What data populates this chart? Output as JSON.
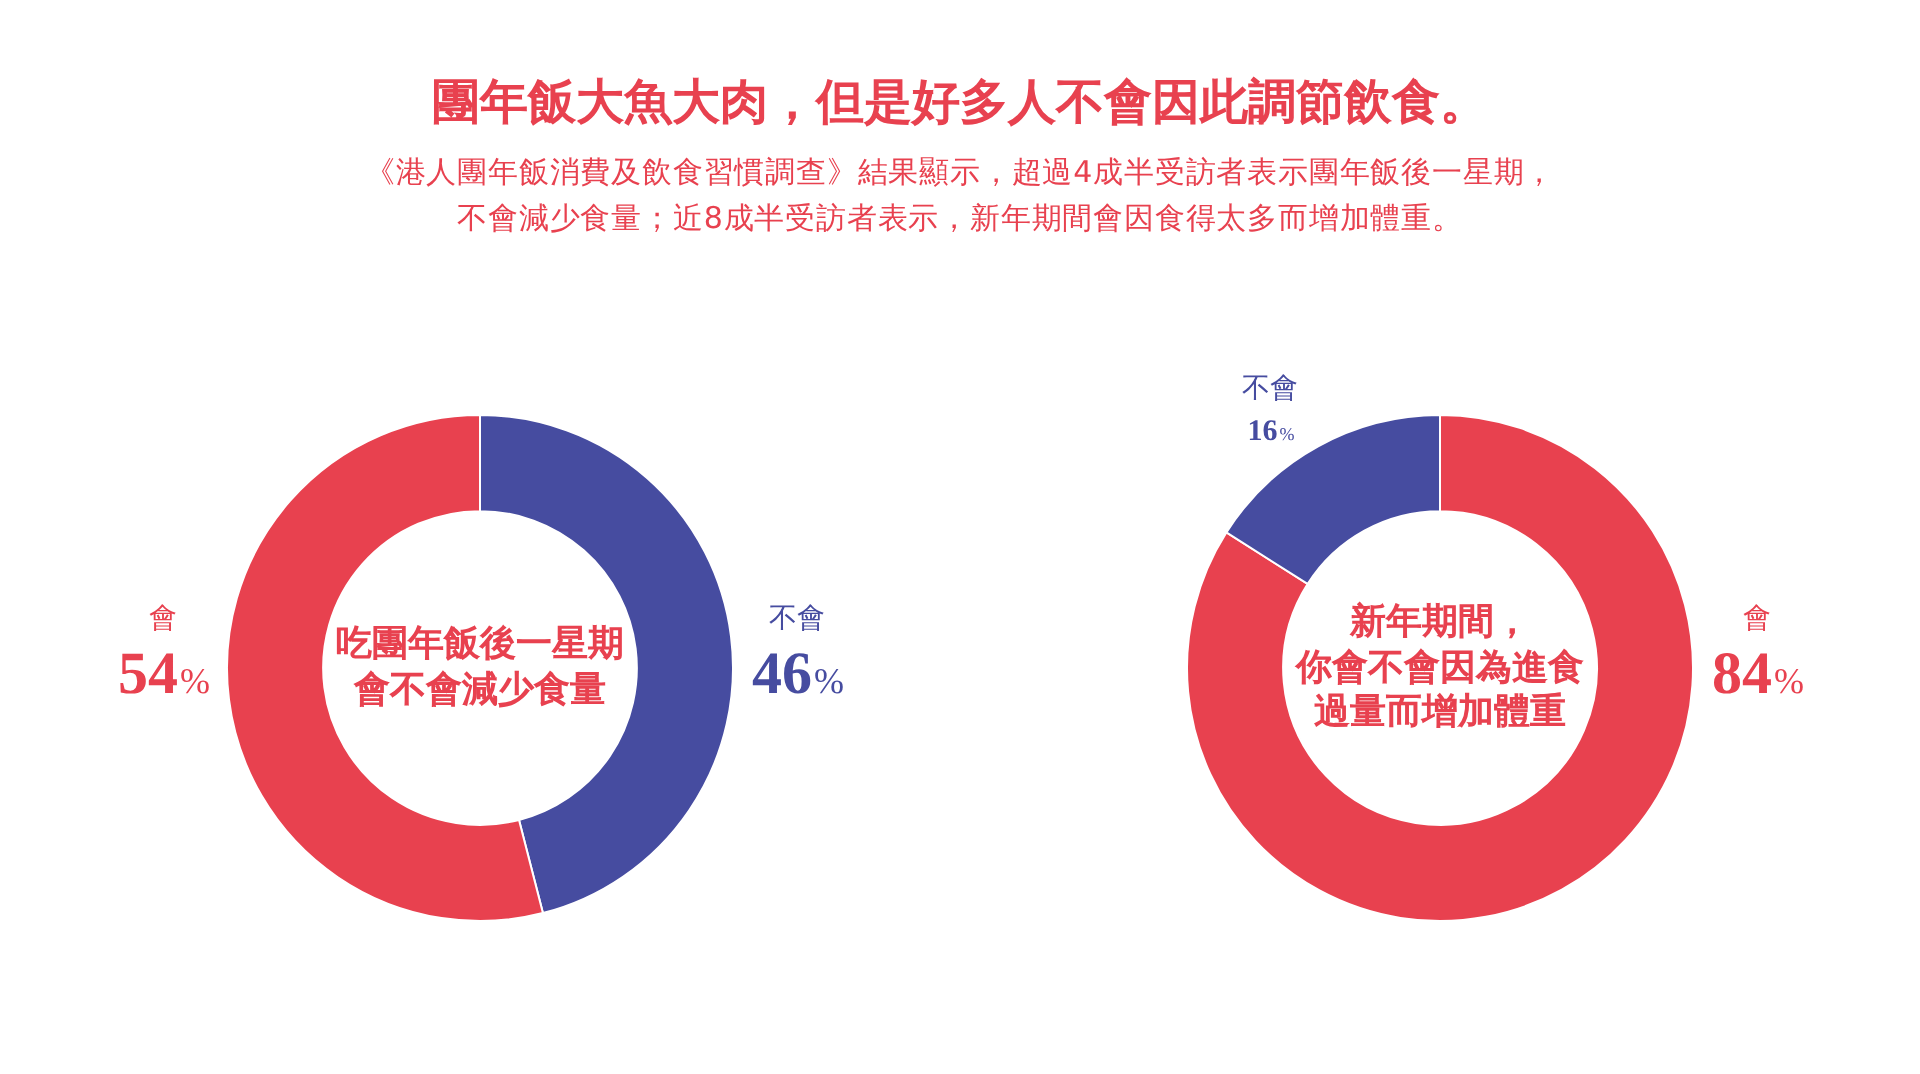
{
  "chart_data": [
    {
      "type": "donut",
      "title": "團年飯大魚大肉，但是好多人不會因此調節飲食。",
      "subtitle": "《港人團年飯消費及飲食習慣調查》結果顯示，超過4成半受訪者表示團年飯後一星期，不會減少食量；近8成半受訪者表示，新年期間會因食得太多而增加體重。",
      "annotations": [
        "吃團年飯後一星期",
        "會不會減少食量"
      ],
      "categories": [
        "不會",
        "會"
      ],
      "values": [
        46,
        54
      ],
      "value_labels": [
        "46%",
        "54%"
      ],
      "colors": [
        "#464ca0",
        "#e8414f"
      ]
    },
    {
      "type": "donut",
      "annotations": [
        "新年期間，",
        "你會不會因為進食",
        "過量而增加體重"
      ],
      "categories": [
        "會",
        "不會"
      ],
      "values": [
        84,
        16
      ],
      "value_labels": [
        "84%",
        "16%"
      ],
      "colors": [
        "#e8414f",
        "#464ca0"
      ]
    }
  ]
}
